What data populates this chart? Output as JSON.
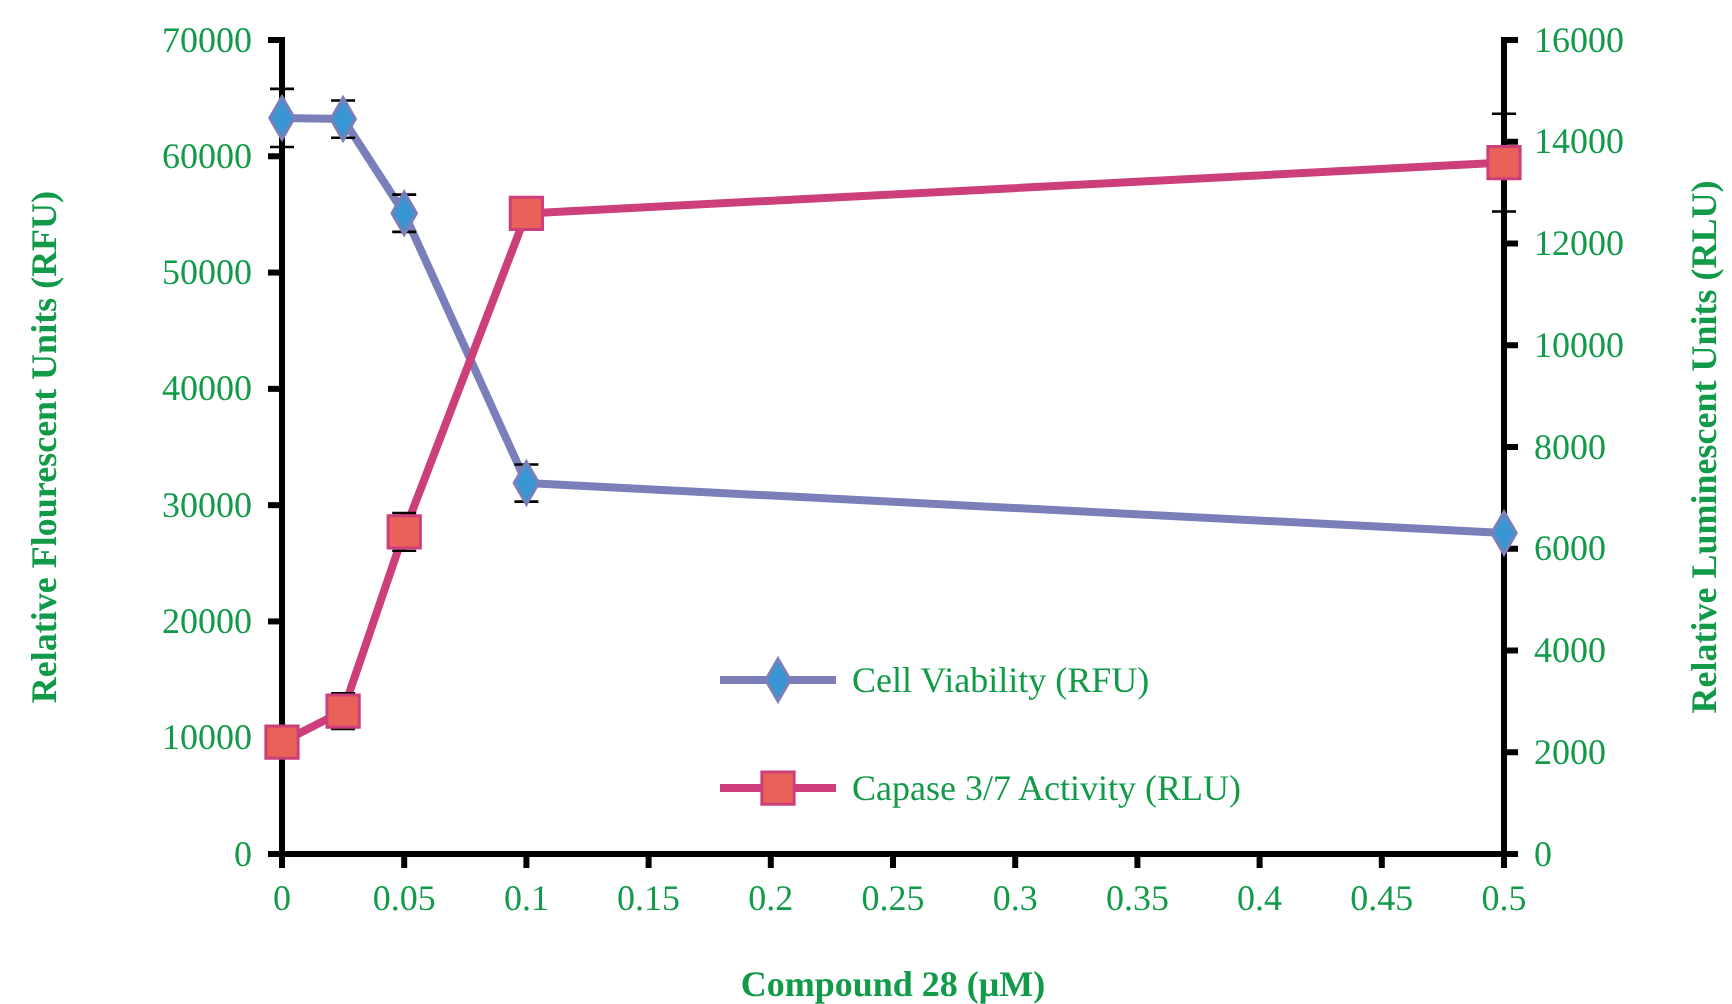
{
  "chart_data": {
    "type": "line",
    "xlabel": "Compound 28 (μM)",
    "ylabel": "Relative Flourescent Units (RFU)",
    "y2label": "Relative Luminescent Units (RLU)",
    "x": [
      0,
      0.025,
      0.05,
      0.1,
      0.5
    ],
    "xlim": [
      0,
      0.5
    ],
    "xticks": [
      0,
      0.05,
      0.1,
      0.15,
      0.2,
      0.25,
      0.3,
      0.35,
      0.4,
      0.45,
      0.5
    ],
    "ylim": [
      0,
      70000
    ],
    "yticks": [
      0,
      10000,
      20000,
      30000,
      40000,
      50000,
      60000,
      70000
    ],
    "y2lim": [
      0,
      16000
    ],
    "y2ticks": [
      0,
      2000,
      4000,
      6000,
      8000,
      10000,
      12000,
      14000,
      16000
    ],
    "legend": "bottom right",
    "grid": false,
    "series": [
      {
        "name": "Cell Viability (RFU)",
        "color": "#7b7fb9",
        "colors": [
          "#3a96d2",
          "#3a96d2",
          "#3a96d2",
          "#3a96d2",
          "#3a96d2"
        ],
        "marker": "diamond",
        "values": [
          63300,
          63200,
          55100,
          31900,
          27600
        ],
        "errors": [
          2500,
          1600,
          1600,
          1600,
          null
        ]
      },
      {
        "name": "Capase 3/7 Activity (RLU)",
        "color": "#cc3f7a",
        "colors": [
          "#e8625a",
          "#e8625a",
          "#e8625a",
          "#e8625a",
          "#e8625a"
        ],
        "marker": "square",
        "axis": "y2",
        "values": [
          2200,
          2810,
          6330,
          12590,
          13590
        ],
        "errors": [
          null,
          350,
          370,
          null,
          960
        ]
      }
    ]
  }
}
